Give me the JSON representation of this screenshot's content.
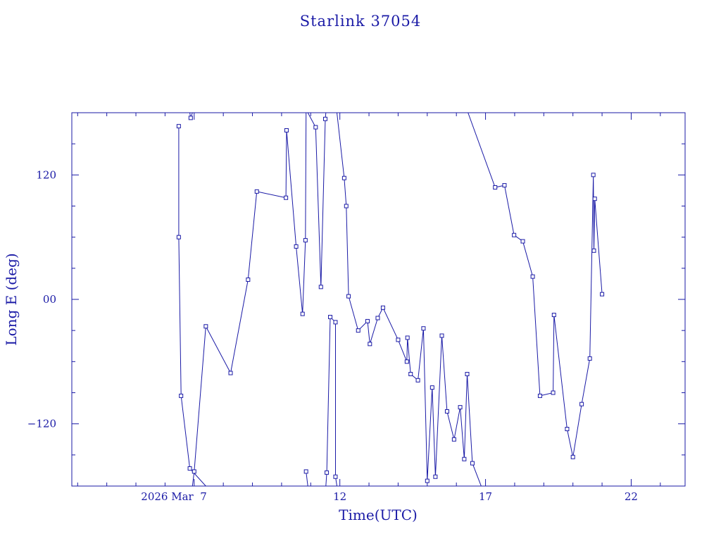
{
  "chart_data": {
    "type": "line",
    "title": "Starlink 37054",
    "xlabel": "Time(UTC)",
    "ylabel": "Long E (deg)",
    "x_unit": "day of March 2026 (UTC)",
    "xlim": [
      2.8,
      23.85
    ],
    "ylim": [
      -180,
      180
    ],
    "x_ticks": [
      {
        "value": 7,
        "label": "2026 Mar  7"
      },
      {
        "value": 12,
        "label": "12"
      },
      {
        "value": 17,
        "label": "17"
      },
      {
        "value": 22,
        "label": "22"
      }
    ],
    "y_ticks": [
      {
        "value": 120,
        "label": "120"
      },
      {
        "value": 0,
        "label": "00"
      },
      {
        "value": -120,
        "label": "−120"
      }
    ],
    "grid": false,
    "color": "#1a1aa6",
    "series": [
      {
        "points": [
          [
            6.47,
            167
          ],
          [
            6.47,
            60
          ],
          [
            6.55,
            -93
          ],
          [
            6.85,
            -163
          ],
          [
            7.4,
            -180
          ]
        ]
      },
      {
        "points": [
          [
            6.85,
            180
          ],
          [
            6.88,
            175
          ],
          [
            6.94,
            180
          ]
        ]
      },
      {
        "points": [
          [
            6.94,
            -180
          ],
          [
            7.0,
            -166
          ],
          [
            7.4,
            -26
          ],
          [
            8.25,
            -71
          ],
          [
            8.85,
            19
          ],
          [
            9.15,
            104
          ],
          [
            10.15,
            98
          ],
          [
            10.17,
            163
          ],
          [
            10.5,
            51
          ],
          [
            10.72,
            -14
          ],
          [
            10.82,
            57
          ],
          [
            10.84,
            180
          ]
        ]
      },
      {
        "points": [
          [
            10.84,
            -166
          ],
          [
            10.9,
            -180
          ]
        ]
      },
      {
        "points": [
          [
            10.9,
            180
          ],
          [
            11.17,
            166
          ],
          [
            11.35,
            12
          ],
          [
            11.5,
            174
          ],
          [
            11.52,
            180
          ]
        ]
      },
      {
        "points": [
          [
            11.52,
            -180
          ],
          [
            11.55,
            -167
          ],
          [
            11.67,
            -17
          ],
          [
            11.85,
            -22
          ],
          [
            11.85,
            -171
          ],
          [
            11.9,
            -180
          ]
        ]
      },
      {
        "points": [
          [
            11.9,
            180
          ],
          [
            12.15,
            117
          ],
          [
            12.22,
            90
          ],
          [
            12.3,
            3
          ],
          [
            12.63,
            -30
          ],
          [
            12.95,
            -21
          ],
          [
            13.03,
            -43
          ],
          [
            13.3,
            -18
          ],
          [
            13.48,
            -8
          ],
          [
            14.0,
            -39
          ],
          [
            14.3,
            -60
          ],
          [
            14.32,
            -37
          ],
          [
            14.43,
            -72
          ],
          [
            14.68,
            -78
          ],
          [
            14.87,
            -28
          ],
          [
            15.0,
            -175
          ],
          [
            15.17,
            -85
          ],
          [
            15.28,
            -171
          ],
          [
            15.5,
            -35
          ],
          [
            15.68,
            -108
          ],
          [
            15.92,
            -135
          ],
          [
            16.13,
            -104
          ],
          [
            16.27,
            -154
          ],
          [
            16.37,
            -72
          ],
          [
            16.55,
            -158
          ],
          [
            16.85,
            -180
          ]
        ]
      },
      {
        "points": [
          [
            16.4,
            180
          ],
          [
            17.33,
            108
          ],
          [
            17.65,
            110
          ],
          [
            17.98,
            62
          ],
          [
            18.28,
            56
          ],
          [
            18.62,
            22
          ],
          [
            18.87,
            -93
          ],
          [
            19.32,
            -90
          ],
          [
            19.35,
            -15
          ],
          [
            19.8,
            -125
          ],
          [
            20.0,
            -152
          ],
          [
            20.3,
            -101
          ],
          [
            20.58,
            -57
          ],
          [
            20.7,
            120
          ],
          [
            20.72,
            47
          ],
          [
            20.75,
            97
          ],
          [
            21.0,
            5
          ]
        ]
      }
    ]
  }
}
